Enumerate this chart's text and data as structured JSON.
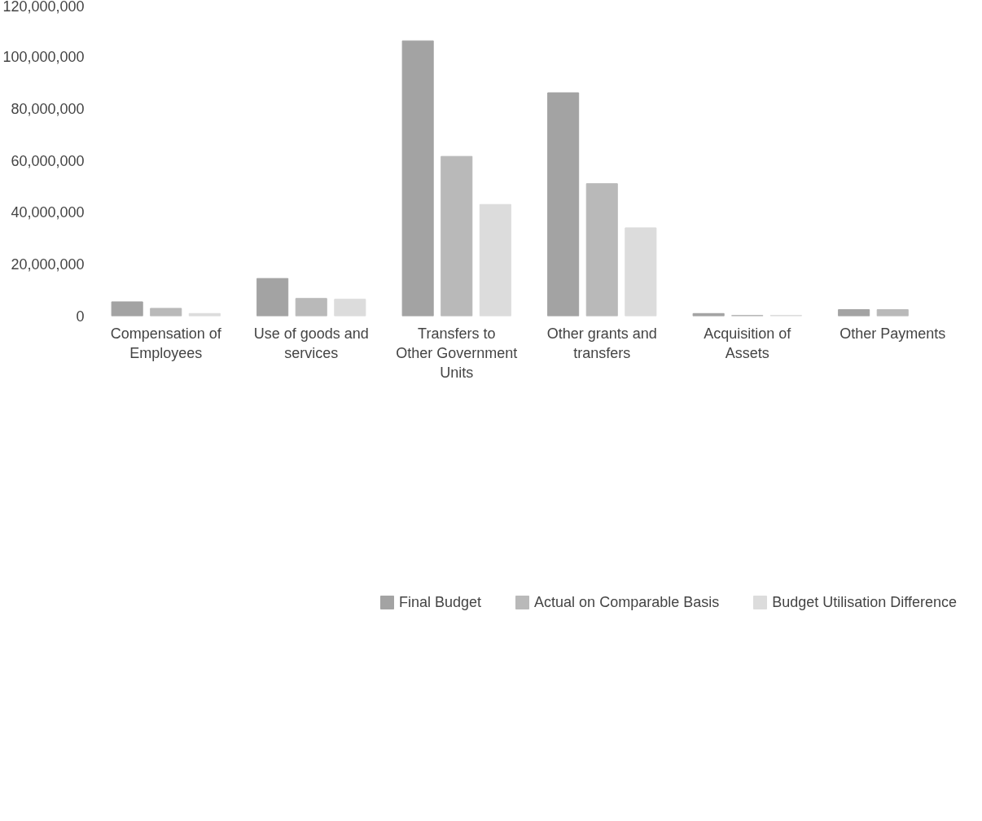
{
  "chart_data": {
    "type": "bar",
    "categories": [
      "Compensation of Employees",
      "Use of goods and services",
      "Transfers to Other Government Units",
      "Other grants and transfers",
      "Acquisition of Assets",
      "Other Payments"
    ],
    "series": [
      {
        "name": "Final Budget",
        "color": "#a3a3a3",
        "values": [
          5500000,
          14500000,
          106000000,
          86000000,
          1000000,
          2500000
        ]
      },
      {
        "name": "Actual on Comparable Basis",
        "color": "#b9b9b9",
        "values": [
          3000000,
          6800000,
          61500000,
          51000000,
          300000,
          2500000
        ]
      },
      {
        "name": "Budget Utilisation Difference",
        "color": "#dcdcdc",
        "values": [
          1000000,
          6500000,
          43000000,
          34000000,
          300000,
          null
        ]
      }
    ],
    "ylim": [
      0,
      120000000
    ],
    "yticks": [
      {
        "value": 0,
        "label": "0"
      },
      {
        "value": 20000000,
        "label": "20,000,000"
      },
      {
        "value": 40000000,
        "label": "40,000,000"
      },
      {
        "value": 60000000,
        "label": "60,000,000"
      },
      {
        "value": 80000000,
        "label": "80,000,000"
      },
      {
        "value": 100000000,
        "label": "100,000,000"
      },
      {
        "value": 120000000,
        "label": "120,000,000"
      }
    ],
    "grid": false,
    "legend": "bottom"
  }
}
